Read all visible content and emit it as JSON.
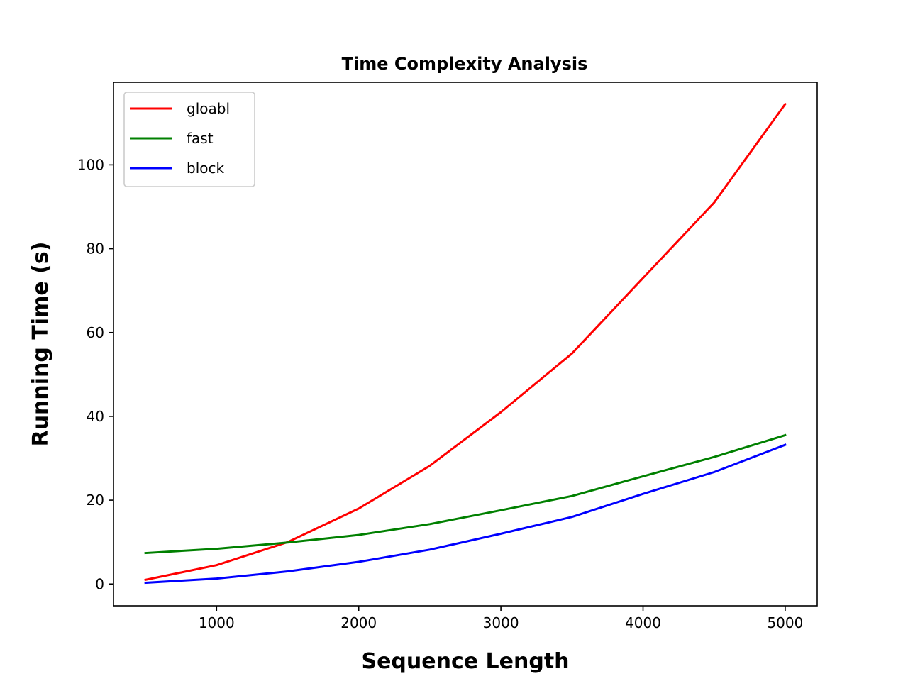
{
  "chart_data": {
    "type": "line",
    "title": "Time Complexity Analysis",
    "xlabel": "Sequence Length",
    "ylabel": "Running Time (s)",
    "x": [
      500,
      1000,
      1500,
      2000,
      2500,
      3000,
      3500,
      4000,
      4500,
      5000
    ],
    "series": [
      {
        "name": "gloabl",
        "color": "#ff0000",
        "values": [
          1.0,
          4.5,
          10.0,
          18.0,
          28.2,
          41.0,
          55.0,
          73.0,
          91.0,
          114.5
        ]
      },
      {
        "name": "fast",
        "color": "#008000",
        "values": [
          7.4,
          8.4,
          9.9,
          11.7,
          14.3,
          17.6,
          21.0,
          25.7,
          30.3,
          35.5
        ]
      },
      {
        "name": "block",
        "color": "#0000ff",
        "values": [
          0.3,
          1.3,
          3.0,
          5.3,
          8.2,
          12.0,
          16.0,
          21.5,
          26.7,
          33.2
        ]
      }
    ],
    "xlim": [
      275,
      5225
    ],
    "ylim": [
      -5.2,
      119.7
    ],
    "xticks": [
      1000,
      2000,
      3000,
      4000,
      5000
    ],
    "yticks": [
      0,
      20,
      40,
      60,
      80,
      100
    ],
    "grid": false,
    "legend_position": "top-left"
  }
}
